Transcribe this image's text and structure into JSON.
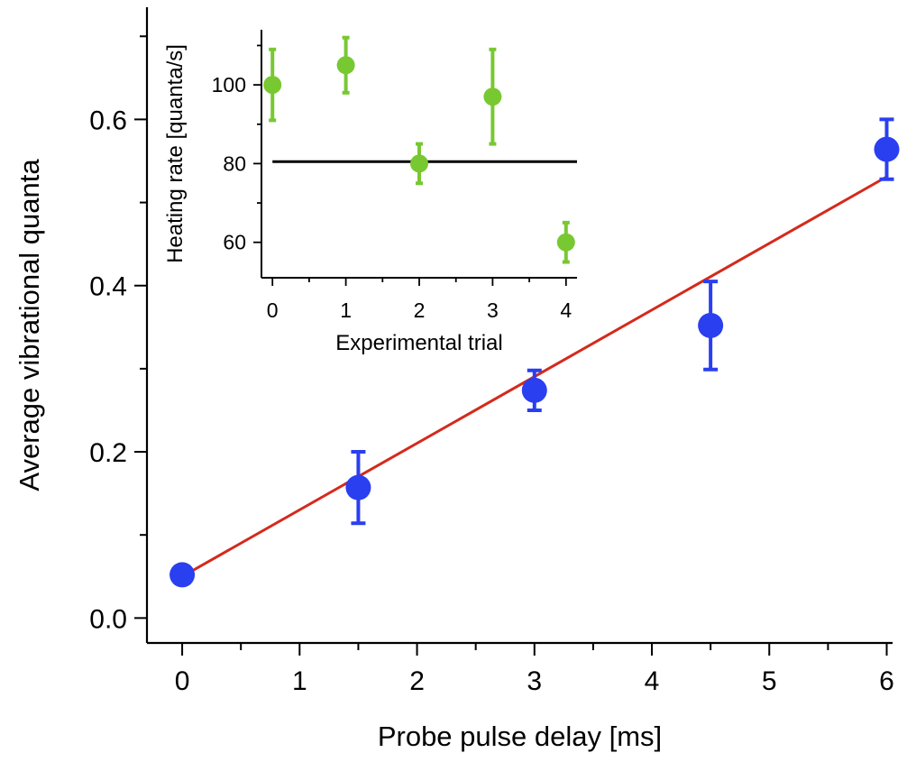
{
  "chart_data": [
    {
      "type": "scatter",
      "title": "",
      "xlabel": "Probe pulse delay [ms]",
      "ylabel": "Average vibrational quanta",
      "xlim": [
        -0.3,
        6.05
      ],
      "ylim": [
        -0.03,
        0.735
      ],
      "xticks": [
        0,
        1,
        2,
        3,
        4,
        5,
        6
      ],
      "xtick_labels": [
        "0",
        "1",
        "2",
        "3",
        "4",
        "5",
        "6"
      ],
      "yticks": [
        0.0,
        0.2,
        0.4,
        0.6
      ],
      "ytick_labels": [
        "0.0",
        "0.2",
        "0.4",
        "0.6"
      ],
      "grid": false,
      "series": [
        {
          "kind": "points",
          "color": "#2a3ff0",
          "x": [
            0,
            1.5,
            3.0,
            4.5,
            6.0
          ],
          "y": [
            0.052,
            0.157,
            0.274,
            0.352,
            0.564
          ],
          "y_error": [
            0.004,
            0.043,
            0.024,
            0.053,
            0.036
          ]
        },
        {
          "kind": "fit-line",
          "color": "#d42a1c",
          "x": [
            0,
            6.0
          ],
          "y": [
            0.05,
            0.531
          ]
        }
      ]
    },
    {
      "type": "scatter",
      "title": "",
      "xlabel": "Experimental trial",
      "ylabel": "Heating rate [quanta/s]",
      "xlim": [
        -0.15,
        4.15
      ],
      "ylim": [
        51,
        114
      ],
      "xticks": [
        0,
        1,
        2,
        3,
        4
      ],
      "xtick_labels": [
        "0",
        "1",
        "2",
        "3",
        "4"
      ],
      "yticks": [
        60,
        80,
        100
      ],
      "ytick_labels": [
        "60",
        "80",
        "100"
      ],
      "grid": false,
      "series": [
        {
          "kind": "points",
          "color": "#78c832",
          "x": [
            0,
            1,
            2,
            3,
            4
          ],
          "y": [
            100,
            105,
            80,
            97,
            60
          ],
          "y_error": [
            9,
            7,
            5,
            12,
            5
          ]
        },
        {
          "kind": "mean-line",
          "color": "#000000",
          "x": [
            0,
            4.15
          ],
          "y": [
            80.5,
            80.5
          ]
        }
      ]
    }
  ]
}
